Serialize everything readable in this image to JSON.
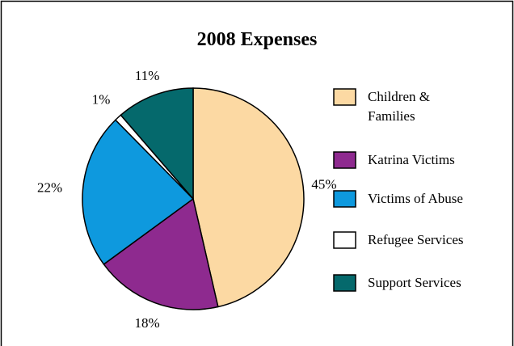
{
  "chart_data": {
    "type": "pie",
    "title": "2008 Expenses",
    "categories": [
      "Children & Families",
      "Katrina Victims",
      "Victims of Abuse",
      "Refugee Services",
      "Support Services"
    ],
    "values": [
      45,
      18,
      22,
      1,
      11
    ],
    "labels": [
      "45%",
      "18%",
      "22%",
      "1%",
      "11%"
    ],
    "colors": [
      "#fcd9a3",
      "#8e2a8f",
      "#0e99de",
      "#ffffff",
      "#05696c"
    ],
    "legend": {
      "placement": "right",
      "items": [
        {
          "lines": [
            "Children &",
            "Families"
          ],
          "color": "#fcd9a3"
        },
        {
          "lines": [
            "Katrina Victims"
          ],
          "color": "#8e2a8f"
        },
        {
          "lines": [
            "Victims of Abuse"
          ],
          "color": "#0e99de"
        },
        {
          "lines": [
            "Refugee Services"
          ],
          "color": "#ffffff"
        },
        {
          "lines": [
            "Support Services"
          ],
          "color": "#05696c"
        }
      ]
    },
    "start_angle": "12 o'clock",
    "direction": "clockwise",
    "border_color": "#000000"
  }
}
